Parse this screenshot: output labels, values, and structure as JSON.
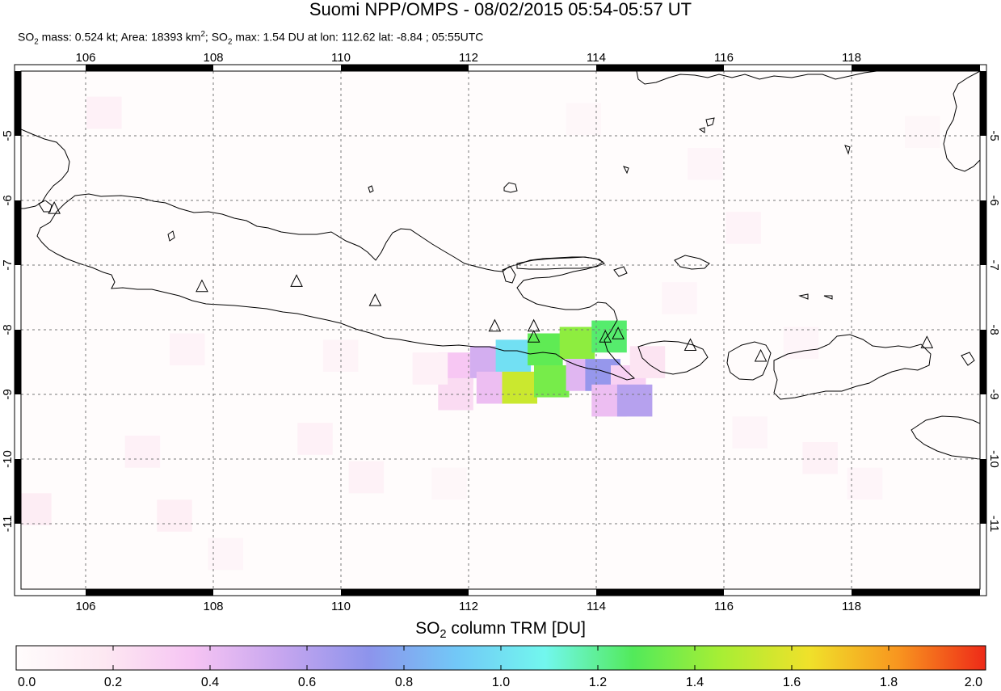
{
  "header": {
    "title": "Suomi NPP/OMPS - 08/02/2015 05:54-05:57 UT",
    "stats": {
      "mass_prefix": "SO",
      "mass_sub": "2",
      "mass_text": " mass: 0.524 kt; Area: 18393 km",
      "area_sup": "2",
      "max_prefix": "; SO",
      "max_sub": "2",
      "max_text": " max: 1.54 DU at lon: 112.62 lat: -8.84 ; 05:55UTC"
    }
  },
  "map": {
    "lon_range": [
      104.9,
      119.9
    ],
    "lat_range": [
      -12.05,
      -3.95
    ],
    "lon_ticks": [
      "106",
      "108",
      "110",
      "112",
      "114",
      "116",
      "118"
    ],
    "lat_ticks": [
      "-5",
      "-6",
      "-7",
      "-8",
      "-9",
      "-10",
      "-11"
    ],
    "grid": "dashed",
    "so2_pixels": [
      {
        "lon": 111.7,
        "lat": -8.6,
        "du": 0.35
      },
      {
        "lon": 112.2,
        "lat": -8.5,
        "du": 0.5
      },
      {
        "lon": 112.6,
        "lat": -8.4,
        "du": 1.0
      },
      {
        "lon": 113.1,
        "lat": -8.3,
        "du": 1.3
      },
      {
        "lon": 113.6,
        "lat": -8.2,
        "du": 1.4
      },
      {
        "lon": 114.1,
        "lat": -8.1,
        "du": 1.25
      },
      {
        "lon": 111.7,
        "lat": -9.0,
        "du": 0.25
      },
      {
        "lon": 112.3,
        "lat": -8.9,
        "du": 0.4
      },
      {
        "lon": 112.7,
        "lat": -8.9,
        "du": 1.54
      },
      {
        "lon": 113.2,
        "lat": -8.8,
        "du": 1.35
      },
      {
        "lon": 113.7,
        "lat": -8.7,
        "du": 0.45
      },
      {
        "lon": 114.0,
        "lat": -8.7,
        "du": 0.7
      },
      {
        "lon": 114.4,
        "lat": -8.8,
        "du": 0.3
      },
      {
        "lon": 114.1,
        "lat": -9.1,
        "du": 0.4
      },
      {
        "lon": 114.5,
        "lat": -9.1,
        "du": 0.6
      },
      {
        "lon": 114.7,
        "lat": -8.5,
        "du": 0.2
      },
      {
        "lon": 111.3,
        "lat": -8.6,
        "du": 0.1
      },
      {
        "lon": 106.2,
        "lat": -4.6,
        "du": 0.1
      },
      {
        "lon": 107.5,
        "lat": -8.3,
        "du": 0.08
      },
      {
        "lon": 106.8,
        "lat": -9.9,
        "du": 0.1
      },
      {
        "lon": 107.3,
        "lat": -10.9,
        "du": 0.12
      },
      {
        "lon": 109.9,
        "lat": -8.4,
        "du": 0.07
      },
      {
        "lon": 109.5,
        "lat": -9.7,
        "du": 0.1
      },
      {
        "lon": 110.3,
        "lat": -10.3,
        "du": 0.09
      },
      {
        "lon": 108.1,
        "lat": -11.5,
        "du": 0.06
      },
      {
        "lon": 113.7,
        "lat": -4.7,
        "du": 0.05
      },
      {
        "lon": 115.6,
        "lat": -5.4,
        "du": 0.06
      },
      {
        "lon": 116.2,
        "lat": -6.4,
        "du": 0.08
      },
      {
        "lon": 115.2,
        "lat": -7.5,
        "du": 0.06
      },
      {
        "lon": 117.1,
        "lat": -8.2,
        "du": 0.06
      },
      {
        "lon": 116.3,
        "lat": -9.6,
        "du": 0.06
      },
      {
        "lon": 117.4,
        "lat": -10.0,
        "du": 0.09
      },
      {
        "lon": 118.1,
        "lat": -10.4,
        "du": 0.06
      },
      {
        "lon": 119.0,
        "lat": -4.9,
        "du": 0.05
      },
      {
        "lon": 105.1,
        "lat": -10.8,
        "du": 0.14
      },
      {
        "lon": 111.6,
        "lat": -10.4,
        "du": 0.05
      }
    ],
    "volcanoes": [
      {
        "lon": 105.42,
        "lat": -6.1
      },
      {
        "lon": 107.73,
        "lat": -7.32
      },
      {
        "lon": 109.21,
        "lat": -7.24
      },
      {
        "lon": 110.44,
        "lat": -7.54
      },
      {
        "lon": 112.31,
        "lat": -7.94
      },
      {
        "lon": 112.92,
        "lat": -7.94
      },
      {
        "lon": 112.92,
        "lat": -8.11
      },
      {
        "lon": 114.04,
        "lat": -8.11
      },
      {
        "lon": 114.24,
        "lat": -8.06
      },
      {
        "lon": 115.37,
        "lat": -8.24
      },
      {
        "lon": 116.47,
        "lat": -8.41
      },
      {
        "lon": 119.07,
        "lat": -8.2
      }
    ]
  },
  "colorbar": {
    "title_prefix": "SO",
    "title_sub": "2",
    "title_suffix": " column TRM [DU]",
    "range": [
      0.0,
      2.0
    ],
    "labels": [
      "0.0",
      "0.2",
      "0.4",
      "0.6",
      "0.8",
      "1.0",
      "1.2",
      "1.4",
      "1.6",
      "1.8",
      "2.0"
    ],
    "stops": [
      "#fffcfc",
      "#fde8f2",
      "#f6c4f3",
      "#c7a6ef",
      "#8d94ec",
      "#72c8f7",
      "#72f7ee",
      "#52ea5a",
      "#a8ee34",
      "#f0e12a",
      "#f8961f",
      "#ee2a18"
    ]
  }
}
